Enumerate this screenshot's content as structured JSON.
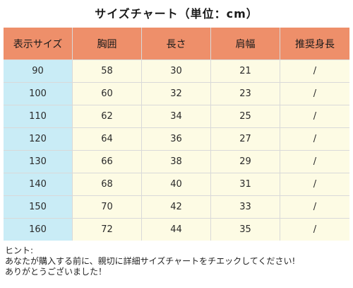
{
  "title": "サイズチャート（単位：cm）",
  "table": {
    "headers": [
      "表示サイズ",
      "胸囲",
      "長さ",
      "肩幅",
      "推奨身長"
    ],
    "rows": [
      [
        "90",
        "58",
        "30",
        "21",
        "/"
      ],
      [
        "100",
        "60",
        "32",
        "23",
        "/"
      ],
      [
        "110",
        "62",
        "34",
        "25",
        "/"
      ],
      [
        "120",
        "64",
        "36",
        "27",
        "/"
      ],
      [
        "130",
        "66",
        "38",
        "29",
        "/"
      ],
      [
        "140",
        "68",
        "40",
        "31",
        "/"
      ],
      [
        "150",
        "70",
        "42",
        "33",
        "/"
      ],
      [
        "160",
        "72",
        "44",
        "35",
        "/"
      ]
    ]
  },
  "hint": {
    "label": "ヒント:",
    "line1": "あなたが購入する前に、親切に詳細サイズチャートをチエックしてください!",
    "line2": "ありがとうございました！"
  },
  "colors": {
    "header_bg": "#ee8f6a",
    "size_column_bg": "#c9ecf6",
    "cell_bg": "#fdfbe4"
  }
}
